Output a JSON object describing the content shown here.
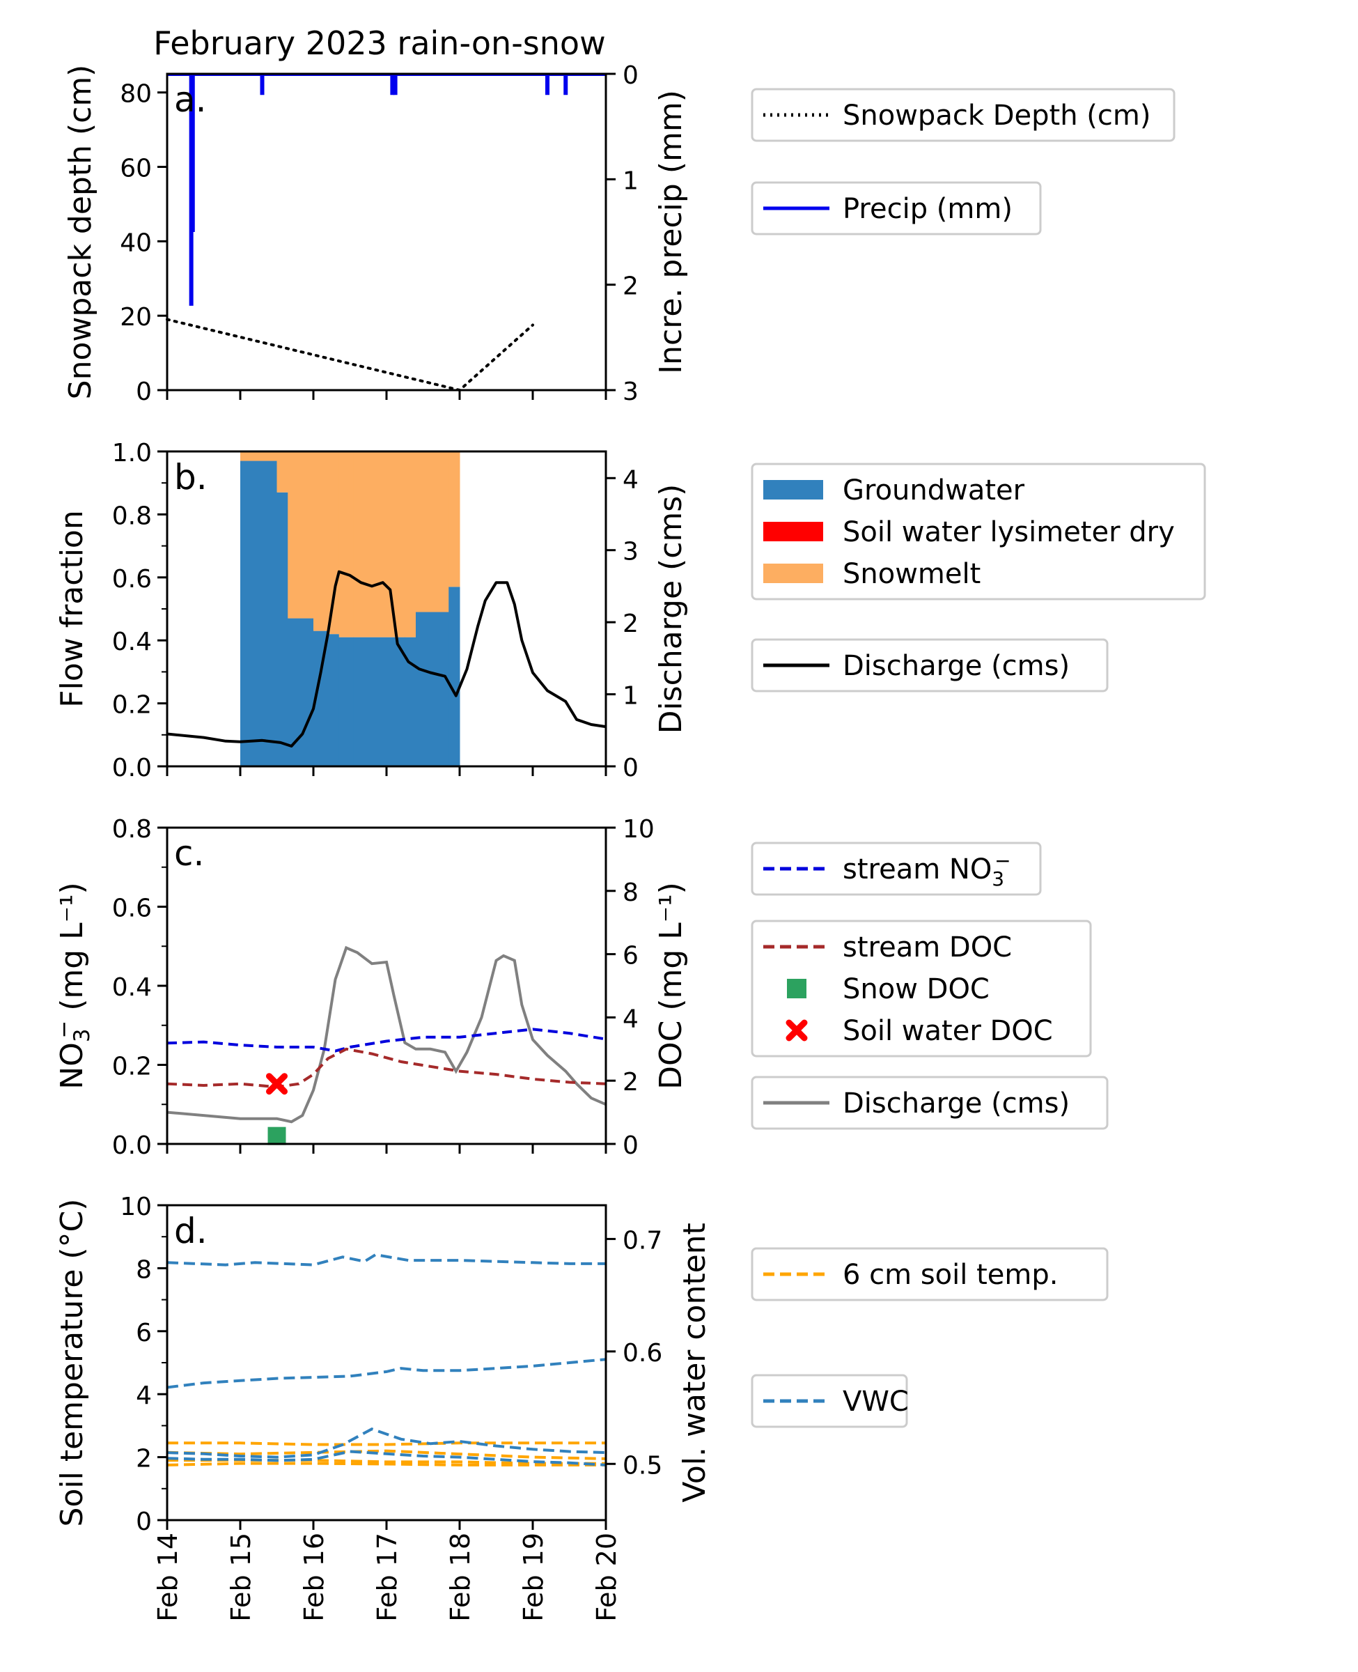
{
  "figure": {
    "title": "February 2023 rain-on-snow"
  },
  "colors": {
    "precip": "#0000ee",
    "groundwater": "#3181bd",
    "soil_water": "#ff0000",
    "snowmelt": "#fdae61",
    "discharge_b": "#000000",
    "discharge_c": "#808080",
    "stream_no3": "#0000dd",
    "stream_doc": "#a52a2a",
    "snow_doc": "#2ca25f",
    "soil_doc": "#ff0000",
    "soil_temp": "#ffa500",
    "vwc": "#3181bd"
  },
  "x_axis": {
    "tick_labels": [
      "Feb 14",
      "Feb 15",
      "Feb 16",
      "Feb 17",
      "Feb 18",
      "Feb 19",
      "Feb 20"
    ]
  },
  "chart_data": [
    {
      "type": "line",
      "panel_label": "a.",
      "ylabel_left": "Snowpack depth (cm)",
      "ylabel_right": "Incre. precip (mm)",
      "ylim_left": [
        0,
        85
      ],
      "ylim_right_inverted": [
        3,
        0
      ],
      "yticks_left": [
        "0",
        "20",
        "40",
        "60",
        "80"
      ],
      "yticks_right": [
        "0",
        "1",
        "2",
        "3"
      ],
      "series": [
        {
          "name": "Snowpack Depth (cm)",
          "style": "dotted",
          "x": [
            14.0,
            18.0,
            19.0
          ],
          "y": [
            19,
            0,
            17.5
          ]
        },
        {
          "name": "Precip (mm)",
          "style": "bar-down",
          "x": [
            14.33,
            14.35,
            15.3,
            17.08,
            17.12,
            19.2,
            19.45
          ],
          "y": [
            2.2,
            1.5,
            0.2,
            0.2,
            0.2,
            0.2,
            0.2
          ]
        }
      ],
      "legend": [
        {
          "label": "Snowpack Depth (cm)",
          "style": "dotted"
        },
        {
          "label": "Precip (mm)",
          "style": "precip"
        }
      ]
    },
    {
      "type": "area",
      "panel_label": "b.",
      "ylabel_left": "Flow fraction",
      "ylabel_right": "Discharge (cms)",
      "ylim_left": [
        0,
        1
      ],
      "ylim_right": [
        0,
        4.37
      ],
      "yticks_left": [
        "0.0",
        "0.2",
        "0.4",
        "0.6",
        "0.8",
        "1.0"
      ],
      "yticks_right": [
        "0",
        "1",
        "2",
        "3",
        "4"
      ],
      "fractions": {
        "x_edges": [
          15.0,
          15.5,
          15.65,
          16.0,
          16.2,
          16.35,
          16.55,
          17.25,
          17.4,
          17.85,
          18.0
        ],
        "groundwater": [
          0.97,
          0.87,
          0.47,
          0.43,
          0.42,
          0.41,
          0.41,
          0.41,
          0.49,
          0.57
        ],
        "soil_water": [
          0,
          0,
          0,
          0,
          0,
          0,
          0,
          0,
          0,
          0
        ],
        "snowmelt": [
          0.03,
          0.13,
          0.53,
          0.57,
          0.58,
          0.59,
          0.59,
          0.59,
          0.51,
          0.43
        ]
      },
      "series": [
        {
          "name": "Discharge (cms)",
          "x": [
            14.0,
            14.5,
            14.8,
            15.0,
            15.3,
            15.55,
            15.7,
            15.85,
            16.0,
            16.1,
            16.2,
            16.3,
            16.35,
            16.5,
            16.65,
            16.8,
            16.95,
            17.05,
            17.15,
            17.3,
            17.45,
            17.6,
            17.8,
            17.95,
            18.1,
            18.25,
            18.35,
            18.5,
            18.65,
            18.75,
            18.85,
            19.0,
            19.2,
            19.45,
            19.6,
            19.8,
            20.0
          ],
          "y": [
            0.45,
            0.4,
            0.35,
            0.34,
            0.36,
            0.33,
            0.28,
            0.45,
            0.8,
            1.3,
            1.85,
            2.5,
            2.7,
            2.65,
            2.55,
            2.5,
            2.55,
            2.45,
            1.7,
            1.45,
            1.35,
            1.3,
            1.25,
            0.98,
            1.35,
            1.95,
            2.3,
            2.55,
            2.55,
            2.25,
            1.75,
            1.3,
            1.05,
            0.9,
            0.65,
            0.58,
            0.55
          ]
        }
      ],
      "legend": [
        {
          "label": "Groundwater",
          "style": "patch-gw"
        },
        {
          "label": "Soil water lysimeter dry",
          "style": "patch-sw"
        },
        {
          "label": "Snowmelt",
          "style": "patch-sm"
        },
        {
          "label": "Discharge (cms)",
          "style": "line-black"
        }
      ]
    },
    {
      "type": "line",
      "panel_label": "c.",
      "ylabel_left": "NO3⁻ (mg L⁻¹)",
      "ylabel_right": "DOC (mg L⁻¹)",
      "ylim_left": [
        0,
        0.8
      ],
      "ylim_right": [
        0,
        10
      ],
      "yticks_left": [
        "0.0",
        "0.2",
        "0.4",
        "0.6",
        "0.8"
      ],
      "yticks_right": [
        "0",
        "2",
        "4",
        "6",
        "8",
        "10"
      ],
      "series": [
        {
          "name": "stream NO3⁻",
          "axis": "left",
          "style": "dashed",
          "x": [
            14.0,
            14.5,
            15.0,
            15.5,
            16.0,
            16.3,
            16.5,
            17.0,
            17.5,
            18.0,
            18.5,
            19.0,
            19.5,
            20.0
          ],
          "y": [
            0.255,
            0.258,
            0.25,
            0.245,
            0.245,
            0.235,
            0.245,
            0.26,
            0.27,
            0.27,
            0.28,
            0.29,
            0.28,
            0.265
          ]
        },
        {
          "name": "stream DOC",
          "axis": "right",
          "style": "dashed",
          "x": [
            14.0,
            14.5,
            15.0,
            15.5,
            15.8,
            16.0,
            16.2,
            16.45,
            16.8,
            17.2,
            17.6,
            18.0,
            18.5,
            19.0,
            19.5,
            20.0
          ],
          "y": [
            1.9,
            1.85,
            1.9,
            1.8,
            1.9,
            2.2,
            2.7,
            3.0,
            2.85,
            2.6,
            2.45,
            2.3,
            2.2,
            2.05,
            1.95,
            1.9
          ]
        },
        {
          "name": "Discharge (cms)",
          "axis": "right",
          "style": "solid",
          "x": [
            14.0,
            14.5,
            15.0,
            15.5,
            15.7,
            15.85,
            16.0,
            16.15,
            16.3,
            16.45,
            16.6,
            16.8,
            17.0,
            17.1,
            17.25,
            17.4,
            17.6,
            17.8,
            17.95,
            18.1,
            18.3,
            18.5,
            18.6,
            18.75,
            18.85,
            19.0,
            19.2,
            19.45,
            19.6,
            19.8,
            20.0
          ],
          "y": [
            1.0,
            0.9,
            0.8,
            0.8,
            0.7,
            0.9,
            1.7,
            3.0,
            5.2,
            6.2,
            6.05,
            5.7,
            5.75,
            4.7,
            3.2,
            3.0,
            3.0,
            2.9,
            2.3,
            2.9,
            4.0,
            5.8,
            5.95,
            5.8,
            4.4,
            3.3,
            2.8,
            2.3,
            1.9,
            1.45,
            1.25
          ]
        },
        {
          "name": "Snow DOC",
          "axis": "right",
          "style": "square",
          "x": [
            15.5
          ],
          "y": [
            0.25
          ]
        },
        {
          "name": "Soil water DOC",
          "axis": "right",
          "style": "x",
          "x": [
            15.5
          ],
          "y": [
            1.9
          ]
        }
      ],
      "legend": [
        {
          "label": "stream NO3⁻",
          "style": "dash-blue"
        },
        {
          "label": "stream DOC",
          "style": "dash-brown"
        },
        {
          "label": "Snow DOC",
          "style": "square-green"
        },
        {
          "label": "Soil water DOC",
          "style": "x-red"
        },
        {
          "label": "Discharge (cms)",
          "style": "line-grey"
        }
      ]
    },
    {
      "type": "line",
      "panel_label": "d.",
      "ylabel_left": "Soil temperature (°C)",
      "ylabel_right": "Vol. water content",
      "ylim_left": [
        0,
        10
      ],
      "ylim_right": [
        0.45,
        0.73
      ],
      "yticks_left": [
        "0",
        "2",
        "4",
        "6",
        "8",
        "10"
      ],
      "yticks_right": [
        "0.5",
        "0.6",
        "0.7"
      ],
      "xlim": [
        14,
        20
      ],
      "series": [
        {
          "name": "6 cm soil temp.",
          "axis": "left",
          "style": "dashed",
          "x": [
            14.0,
            15.0,
            16.0,
            17.0,
            18.0,
            19.0,
            20.0
          ],
          "y": [
            2.45,
            2.45,
            2.4,
            2.4,
            2.45,
            2.45,
            2.45
          ]
        },
        {
          "name": "6 cm soil temp.",
          "axis": "left",
          "style": "dashed",
          "x": [
            14.0,
            15.0,
            16.0,
            17.0,
            18.0,
            19.0,
            20.0
          ],
          "y": [
            2.15,
            2.1,
            2.15,
            2.2,
            2.1,
            2.0,
            1.95
          ]
        },
        {
          "name": "6 cm soil temp.",
          "axis": "left",
          "style": "dashed",
          "x": [
            14.0,
            15.0,
            16.0,
            17.0,
            18.0,
            19.0,
            20.0
          ],
          "y": [
            1.9,
            1.9,
            1.9,
            1.85,
            1.85,
            1.8,
            1.8
          ]
        },
        {
          "name": "6 cm soil temp.",
          "axis": "left",
          "style": "dashed",
          "x": [
            14.0,
            15.0,
            16.0,
            17.0,
            18.0,
            19.0,
            20.0
          ],
          "y": [
            1.75,
            1.8,
            1.8,
            1.78,
            1.75,
            1.75,
            1.75
          ]
        },
        {
          "name": "VWC",
          "axis": "right",
          "style": "dashed",
          "x": [
            14.0,
            14.4,
            14.8,
            15.2,
            15.6,
            16.0,
            16.4,
            16.7,
            16.85,
            17.3,
            18.0,
            18.5,
            19.0,
            19.5,
            20.0
          ],
          "y": [
            0.679,
            0.678,
            0.677,
            0.679,
            0.678,
            0.677,
            0.684,
            0.68,
            0.686,
            0.681,
            0.681,
            0.68,
            0.679,
            0.678,
            0.678
          ]
        },
        {
          "name": "VWC",
          "axis": "right",
          "style": "dashed",
          "x": [
            14.0,
            14.5,
            15.0,
            15.5,
            16.0,
            16.5,
            17.0,
            17.2,
            17.5,
            18.0,
            18.5,
            19.0,
            19.5,
            20.0
          ],
          "y": [
            0.568,
            0.572,
            0.574,
            0.576,
            0.577,
            0.578,
            0.582,
            0.585,
            0.583,
            0.583,
            0.585,
            0.587,
            0.59,
            0.593
          ]
        },
        {
          "name": "VWC",
          "axis": "right",
          "style": "dashed",
          "x": [
            14.0,
            14.5,
            15.0,
            15.5,
            16.0,
            16.4,
            16.8,
            17.2,
            17.6,
            18.0,
            18.5,
            19.0,
            19.5,
            20.0
          ],
          "y": [
            0.51,
            0.509,
            0.507,
            0.506,
            0.508,
            0.517,
            0.531,
            0.522,
            0.518,
            0.52,
            0.516,
            0.513,
            0.511,
            0.51
          ]
        },
        {
          "name": "VWC",
          "axis": "right",
          "style": "dashed",
          "x": [
            14.0,
            14.5,
            15.0,
            15.5,
            16.0,
            16.5,
            17.0,
            17.5,
            18.0,
            18.5,
            19.0,
            19.5,
            20.0
          ],
          "y": [
            0.505,
            0.504,
            0.504,
            0.503,
            0.504,
            0.511,
            0.509,
            0.507,
            0.506,
            0.504,
            0.502,
            0.501,
            0.499
          ]
        }
      ],
      "legend": [
        {
          "label": "6 cm soil temp.",
          "style": "dash-orange"
        },
        {
          "label": "VWC",
          "style": "dash-steel"
        }
      ]
    }
  ]
}
